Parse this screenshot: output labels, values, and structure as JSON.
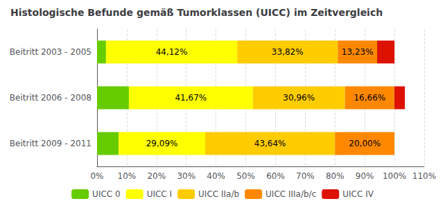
{
  "chart_data": {
    "type": "bar",
    "orientation": "horizontal",
    "stacked": true,
    "title": "Histologische Befunde gemäß Tumorklassen (UICC) im Zeitvergleich",
    "categories": [
      "Beitritt 2003 - 2005",
      "Beitritt 2006 - 2008",
      "Beitritt 2009 - 2011"
    ],
    "series": [
      {
        "name": "UICC 0",
        "color": "#66cc00",
        "values": [
          3.0,
          10.71,
          7.27
        ]
      },
      {
        "name": "UICC I",
        "color": "#ffff00",
        "values": [
          44.12,
          41.67,
          29.09
        ],
        "value_labels": [
          "44,12%",
          "41,67%",
          "29,09%"
        ]
      },
      {
        "name": "UICC IIa/b",
        "color": "#ffcc00",
        "values": [
          33.82,
          30.96,
          43.64
        ],
        "value_labels": [
          "33,82%",
          "30,96%",
          "43,64%"
        ]
      },
      {
        "name": "UICC IIIa/b/c",
        "color": "#ff8800",
        "values": [
          13.23,
          16.66,
          20.0
        ],
        "value_labels": [
          "13,23%",
          "16,66%",
          "20,00%"
        ]
      },
      {
        "name": "UICC IV",
        "color": "#dd1100",
        "values": [
          5.83,
          3.5,
          0.0
        ]
      }
    ],
    "xlim": [
      0,
      110
    ],
    "xticks": [
      {
        "value": 0,
        "label": "0%"
      },
      {
        "value": 10,
        "label": "10%"
      },
      {
        "value": 20,
        "label": "20%"
      },
      {
        "value": 30,
        "label": "30%"
      },
      {
        "value": 40,
        "label": "40%"
      },
      {
        "value": 50,
        "label": "50%"
      },
      {
        "value": 60,
        "label": "60%"
      },
      {
        "value": 70,
        "label": "70%"
      },
      {
        "value": 80,
        "label": "80%"
      },
      {
        "value": 90,
        "label": "90%"
      },
      {
        "value": 100,
        "label": "100%"
      },
      {
        "value": 110,
        "label": "110%"
      }
    ],
    "grid": true,
    "legend": "bottom",
    "data_labels": true
  }
}
